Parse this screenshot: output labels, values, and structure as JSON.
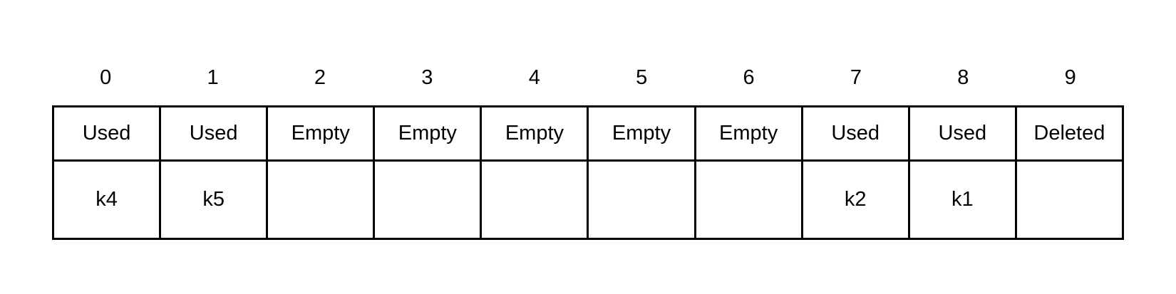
{
  "slots": [
    {
      "index": "0",
      "status": "Used",
      "key": "k4"
    },
    {
      "index": "1",
      "status": "Used",
      "key": "k5"
    },
    {
      "index": "2",
      "status": "Empty",
      "key": ""
    },
    {
      "index": "3",
      "status": "Empty",
      "key": ""
    },
    {
      "index": "4",
      "status": "Empty",
      "key": ""
    },
    {
      "index": "5",
      "status": "Empty",
      "key": ""
    },
    {
      "index": "6",
      "status": "Empty",
      "key": ""
    },
    {
      "index": "7",
      "status": "Used",
      "key": "k2"
    },
    {
      "index": "8",
      "status": "Used",
      "key": "k1"
    },
    {
      "index": "9",
      "status": "Deleted",
      "key": ""
    }
  ]
}
